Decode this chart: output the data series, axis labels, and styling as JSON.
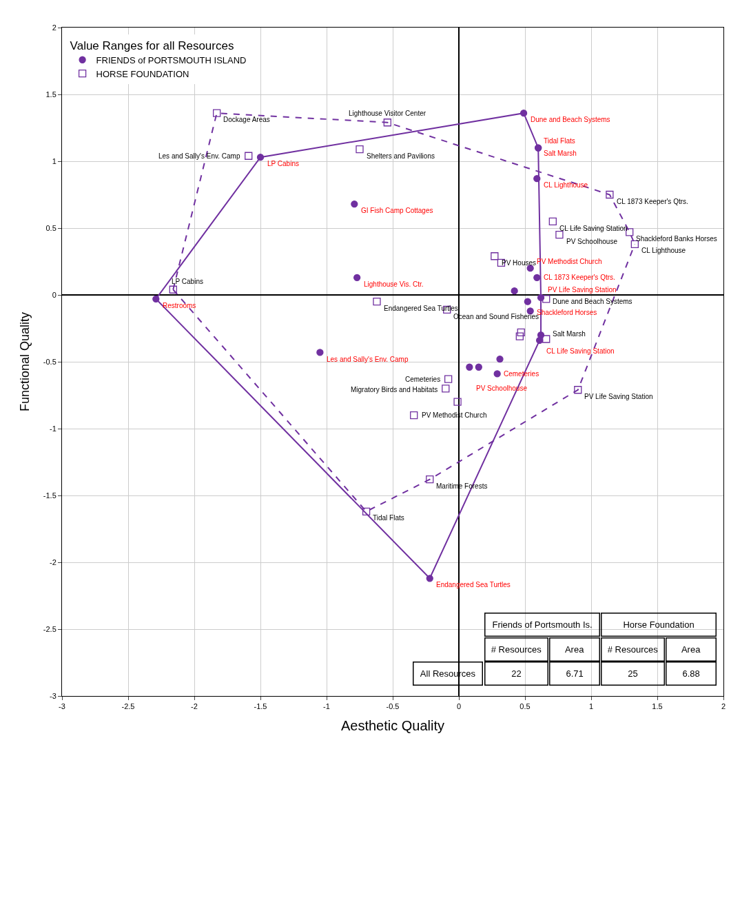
{
  "chart_data": {
    "type": "scatter",
    "xlabel": "Aesthetic Quality",
    "ylabel": "Functional Quality",
    "legend_title": "Value Ranges for all Resources",
    "legend": "top left",
    "grid": true,
    "xlim": [
      -3,
      2
    ],
    "xticks": [
      -3,
      -2.5,
      -2,
      -1.5,
      -1,
      -0.5,
      0,
      0.5,
      1,
      1.5,
      2
    ],
    "ylim": [
      -3,
      2
    ],
    "yticks": [
      -3,
      -2.5,
      -2,
      -1.5,
      -1,
      -0.5,
      0,
      0.5,
      1,
      1.5,
      2
    ],
    "annotations": [
      "Friends of Portsmouth Is.",
      "Horse Foundation",
      "# Resources",
      "Area",
      "# Resources",
      "Area",
      "All Resources",
      "22",
      "6.71",
      "25",
      "6.88"
    ],
    "series": [
      {
        "name": "FRIENDS of PORTSMOUTH ISLAND",
        "marker": "circle",
        "color": "#7030a0",
        "x": [
          0.49,
          0.6,
          0.6,
          0.59,
          0.54,
          0.59,
          0.62,
          0.52,
          0.42,
          0.54,
          0.62,
          0.61,
          0.31,
          0.29,
          0.15,
          0.08,
          -0.79,
          -0.77,
          -1.05,
          -1.5,
          -2.29,
          -0.22
        ],
        "values": [
          1.36,
          1.1,
          1.1,
          0.87,
          0.2,
          0.13,
          -0.02,
          -0.05,
          0.03,
          -0.12,
          -0.3,
          -0.34,
          -0.48,
          -0.59,
          -0.54,
          -0.54,
          0.68,
          0.13,
          -0.43,
          1.03,
          -0.03,
          -2.12
        ],
        "value_labels": [
          "Dune and Beach Systems",
          "Tidal Flats",
          "Salt Marsh",
          "CL Lighthouse",
          "PV Methodist Church",
          "CL 1873 Keeper's Qtrs.",
          "PV Life Saving Station",
          null,
          null,
          "Shackleford Horses",
          null,
          "CL Life Saving Station",
          null,
          "Cemeteries",
          null,
          "PV Schoolhouse",
          "GI Fish Camp Cottages",
          "Lighthouse Vis. Ctr.",
          "Les and Sally's Env. Camp",
          "LP Cabins",
          "Restrooms",
          "Endangered Sea Turtles"
        ]
      },
      {
        "name": "HORSE FOUNDATION",
        "marker": "square",
        "color": "#7030a0",
        "x": [
          1.29,
          1.33,
          1.14,
          0.71,
          0.76,
          0.66,
          0.66,
          0.9,
          0.47,
          0.46,
          0.27,
          0.32,
          -0.09,
          -0.08,
          -0.1,
          -0.01,
          -0.34,
          -0.22,
          -0.7,
          -0.62,
          -0.75,
          -0.54,
          -1.59,
          -1.83,
          -2.16
        ],
        "values": [
          0.47,
          0.38,
          0.75,
          0.55,
          0.45,
          -0.03,
          -0.33,
          -0.71,
          -0.28,
          -0.31,
          0.29,
          0.24,
          -0.11,
          -0.63,
          -0.7,
          -0.8,
          -0.9,
          -1.38,
          -1.62,
          -0.05,
          1.09,
          1.29,
          1.04,
          1.36,
          0.04
        ],
        "value_labels": [
          "Shackleford Banks Horses",
          "CL Lighthouse",
          "CL 1873 Keeper's Qtrs.",
          "CL Life Saving Station",
          "PV Schoolhouse",
          "Dune and Beach Systems",
          "Salt Marsh",
          "PV Life Saving Station",
          null,
          null,
          "PV Houses",
          null,
          "Ocean and Sound Fisheries",
          "Cemeteries",
          "Migratory Birds and Habitats",
          null,
          "PV Methodist Church",
          "Maritime Forests",
          "Tidal Flats",
          "Endangered Sea Turtles",
          "Shelters and Pavilions",
          "Lighthouse Visitor Center",
          "Les and Sally's Env. Camp",
          "Dockage Areas",
          "LP Cabins"
        ]
      },
      {
        "type": "line",
        "line_style": "solid",
        "color": "#7030a0",
        "x": [
          -2.29,
          -1.5,
          0.49,
          0.6,
          0.62,
          0.62
        ],
        "values": [
          -0.03,
          1.03,
          1.36,
          1.1,
          -0.02,
          -0.3
        ]
      },
      {
        "type": "line",
        "line_style": "solid",
        "color": "#7030a0",
        "x": [
          -2.29,
          -0.22,
          0.61,
          0.62
        ],
        "values": [
          -0.03,
          -2.12,
          -0.34,
          -0.3
        ]
      },
      {
        "type": "line",
        "line_style": "dashed",
        "color": "#7030a0",
        "x": [
          -2.16,
          -1.83,
          -0.54,
          1.14,
          1.29,
          1.33
        ],
        "values": [
          0.04,
          1.36,
          1.29,
          0.75,
          0.47,
          0.38
        ]
      },
      {
        "type": "line",
        "line_style": "dashed",
        "color": "#7030a0",
        "x": [
          -2.16,
          -0.7,
          -0.22,
          0.9,
          1.33
        ],
        "values": [
          0.04,
          -1.62,
          -1.38,
          -0.71,
          0.38
        ]
      }
    ]
  }
}
